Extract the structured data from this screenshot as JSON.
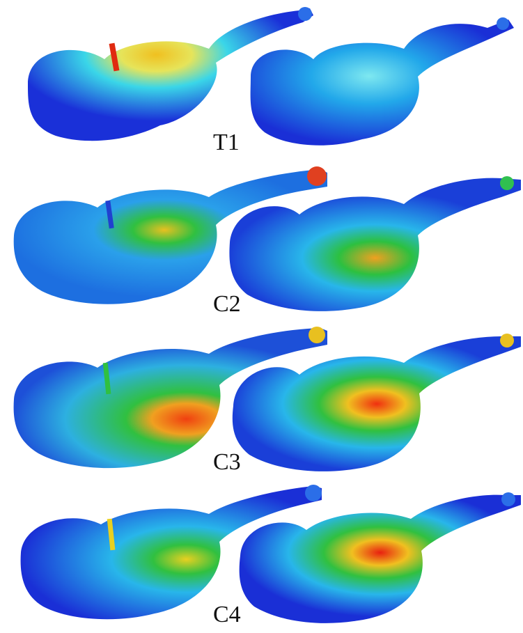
{
  "figure": {
    "panels": [
      {
        "label": "T1"
      },
      {
        "label": "C2"
      },
      {
        "label": "C3"
      },
      {
        "label": "C4"
      }
    ]
  },
  "colormap": {
    "low": "#1a2bd6",
    "mid_low": "#29b8f0",
    "mid": "#22c46a",
    "mid_high": "#f0e020",
    "high": "#e82010"
  }
}
